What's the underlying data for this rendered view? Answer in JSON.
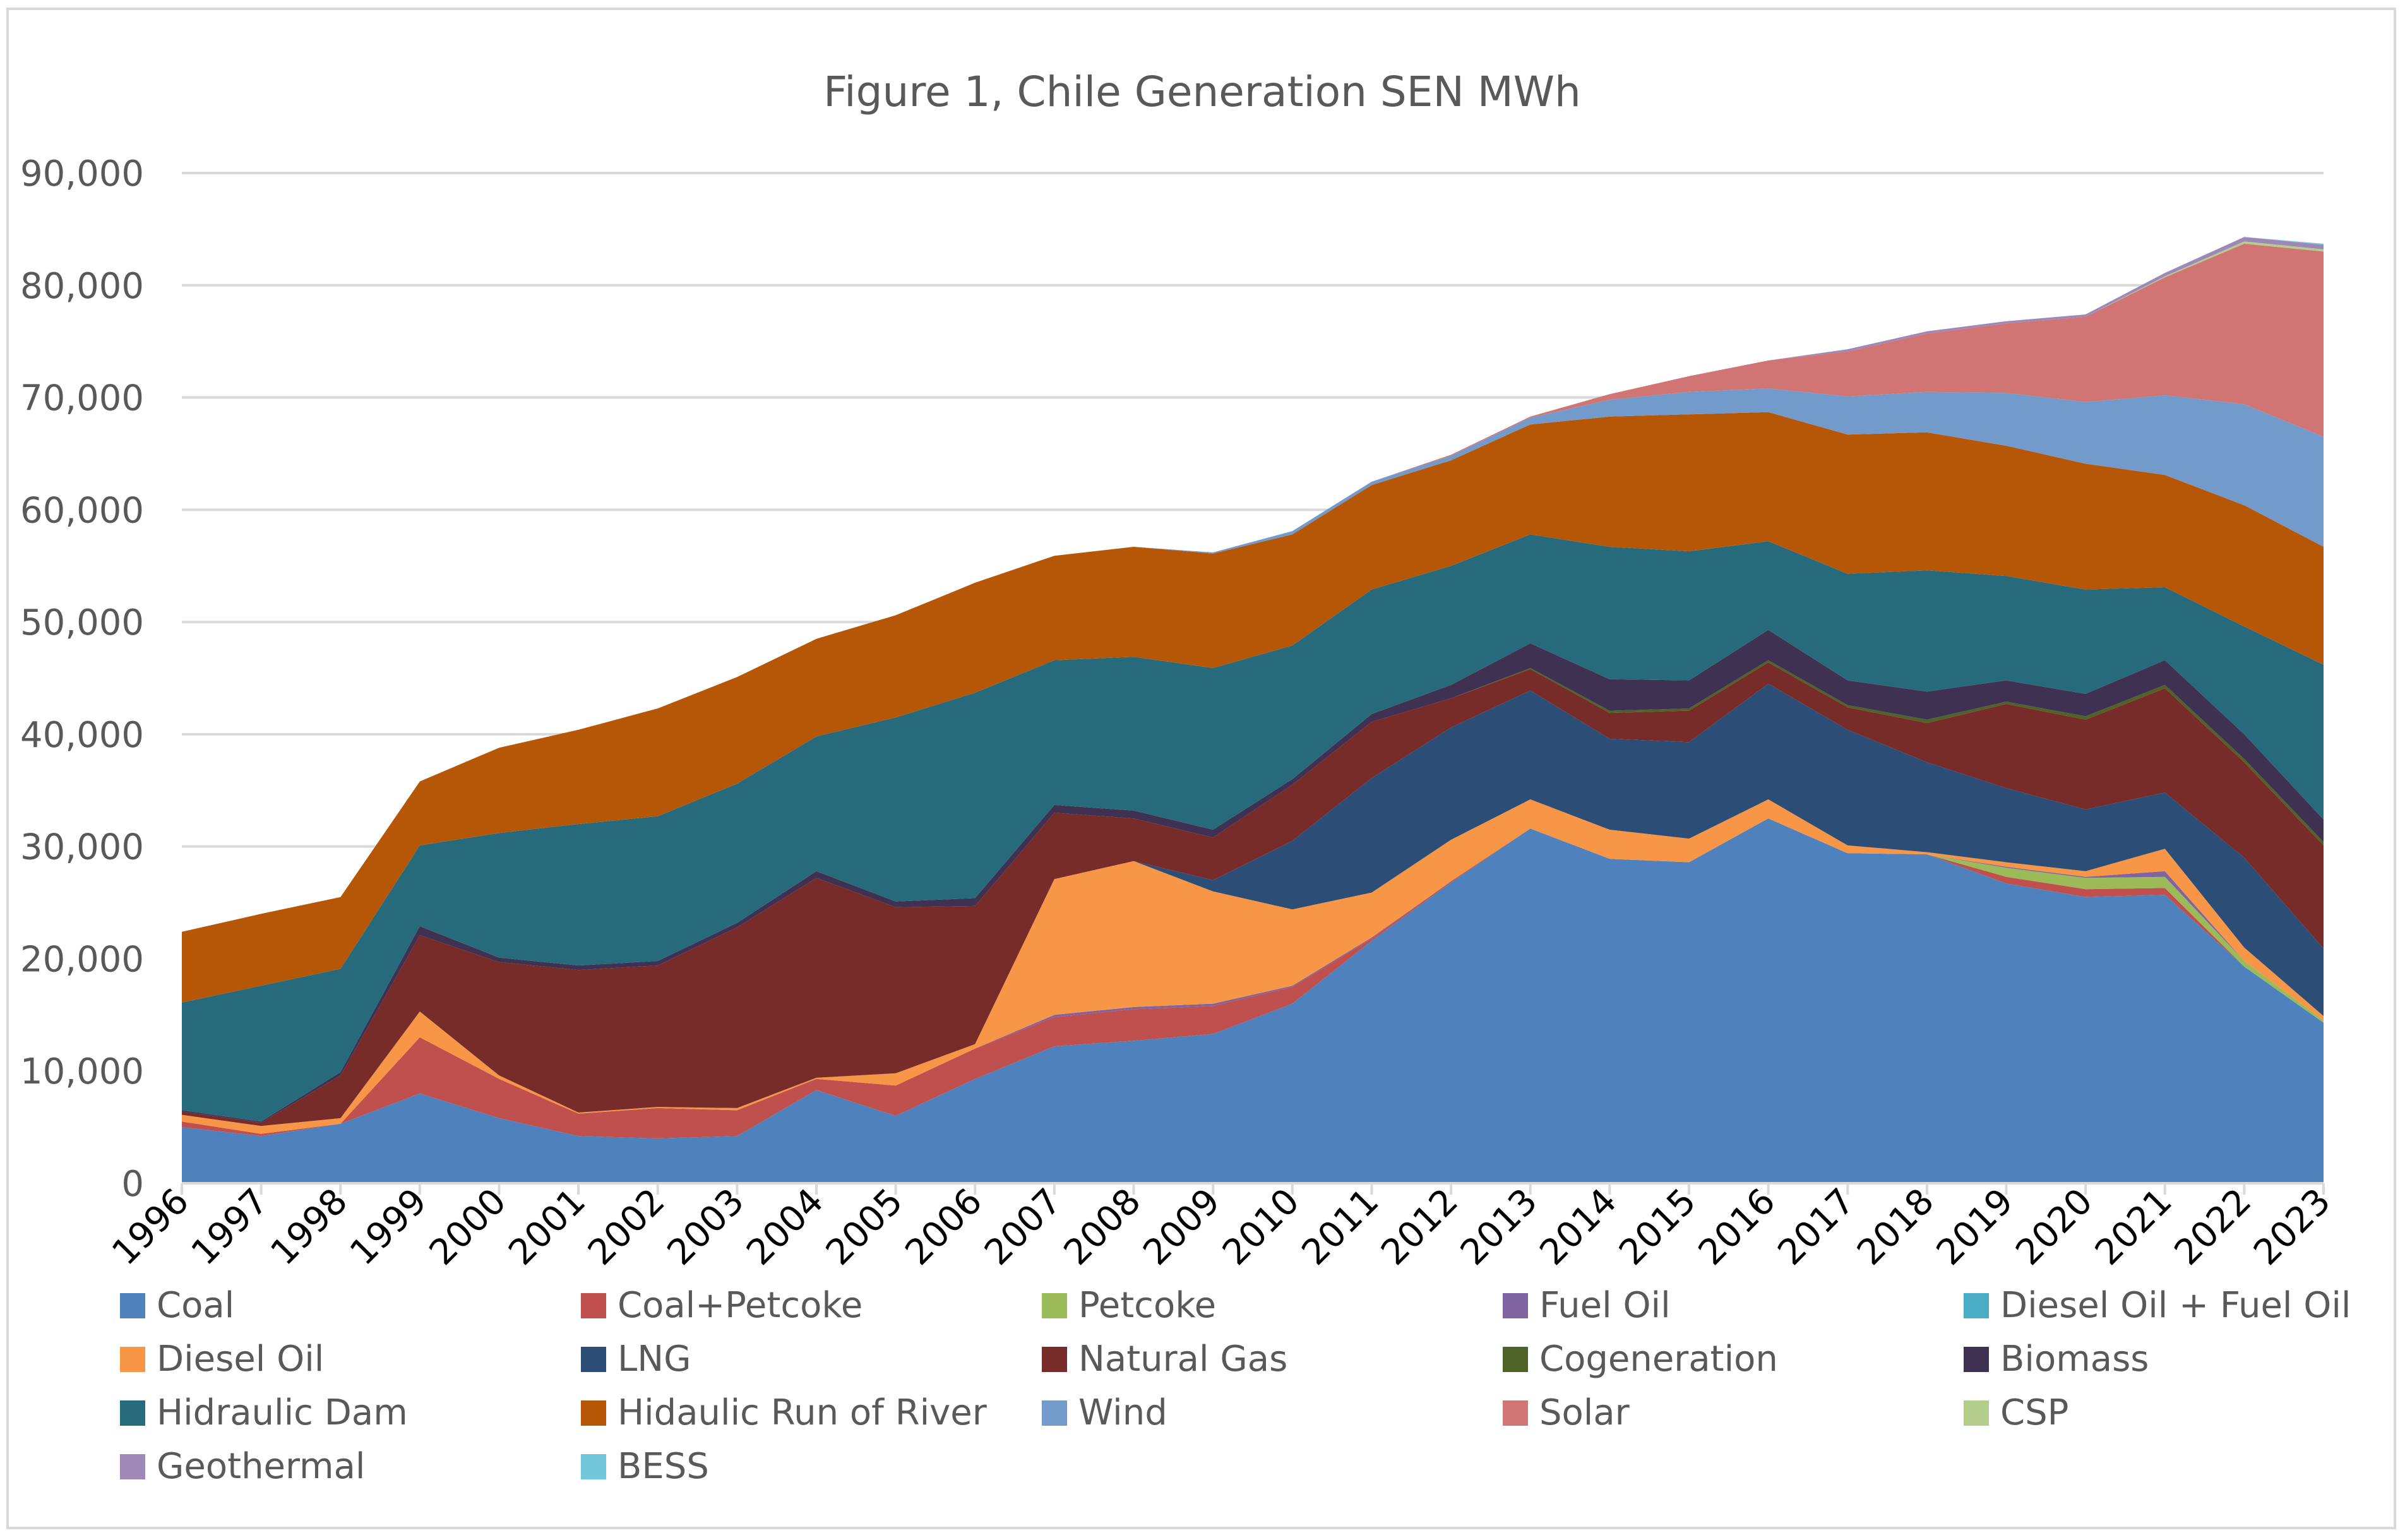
{
  "chart_data": {
    "type": "area",
    "stacked": true,
    "title": "Figure 1, Chile Generation SEN MWh",
    "xlabel": "",
    "ylabel": "",
    "ylim": [
      0,
      90000
    ],
    "yticks": [
      0,
      10000,
      20000,
      30000,
      40000,
      50000,
      60000,
      70000,
      80000,
      90000
    ],
    "ytick_labels": [
      "0",
      "10,000",
      "20,000",
      "30,000",
      "40,000",
      "50,000",
      "60,000",
      "70,000",
      "80,000",
      "90,000"
    ],
    "grid": true,
    "legend_position": "bottom",
    "categories": [
      "1996",
      "1997",
      "1998",
      "1999",
      "2000",
      "2001",
      "2002",
      "2003",
      "2004",
      "2005",
      "2006",
      "2007",
      "2008",
      "2009",
      "2010",
      "2011",
      "2012",
      "2013",
      "2014",
      "2015",
      "2016",
      "2017",
      "2018",
      "2019",
      "2020",
      "2021",
      "2022",
      "2023"
    ],
    "series": [
      {
        "name": "Coal",
        "color": "#4f81bd",
        "values": [
          5000,
          4200,
          5300,
          8000,
          5800,
          4200,
          4000,
          4200,
          8300,
          6000,
          9300,
          12200,
          12700,
          13300,
          16000,
          21600,
          26800,
          31600,
          28900,
          28600,
          32500,
          29400,
          29300,
          26700,
          25500,
          25700,
          19300,
          14300
        ]
      },
      {
        "name": "Coal+Petcoke",
        "color": "#c0504d",
        "values": [
          500,
          200,
          0,
          5000,
          3500,
          2000,
          2700,
          2300,
          1000,
          2700,
          2700,
          2600,
          2800,
          2500,
          1500,
          200,
          100,
          0,
          0,
          0,
          0,
          0,
          0,
          600,
          700,
          600,
          0,
          0
        ]
      },
      {
        "name": "Petcoke",
        "color": "#9bbb59",
        "values": [
          0,
          0,
          0,
          0,
          0,
          0,
          0,
          0,
          0,
          0,
          0,
          0,
          0,
          0,
          0,
          0,
          0,
          0,
          0,
          0,
          0,
          0,
          0,
          800,
          1000,
          1000,
          500,
          200
        ]
      },
      {
        "name": "Fuel Oil",
        "color": "#8064a2",
        "values": [
          0,
          0,
          0,
          0,
          0,
          0,
          0,
          0,
          0,
          0,
          0,
          200,
          200,
          200,
          100,
          100,
          0,
          0,
          0,
          0,
          0,
          0,
          0,
          100,
          100,
          500,
          0,
          0
        ]
      },
      {
        "name": "Diesel Oil + Fuel Oil",
        "color": "#4bacc6",
        "values": [
          0,
          0,
          0,
          0,
          0,
          0,
          0,
          0,
          0,
          0,
          0,
          0,
          0,
          0,
          0,
          0,
          0,
          0,
          0,
          0,
          0,
          0,
          0,
          0,
          0,
          0,
          0,
          0
        ]
      },
      {
        "name": "Diesel Oil",
        "color": "#f79646",
        "values": [
          600,
          700,
          500,
          2300,
          300,
          100,
          100,
          200,
          100,
          1100,
          400,
          12100,
          13000,
          10000,
          6800,
          4000,
          3700,
          2600,
          2600,
          2100,
          1700,
          700,
          200,
          400,
          500,
          2000,
          1200,
          400
        ]
      },
      {
        "name": "LNG",
        "color": "#2c4d75",
        "values": [
          0,
          0,
          0,
          0,
          0,
          0,
          0,
          0,
          0,
          0,
          0,
          0,
          0,
          1000,
          6100,
          10200,
          10000,
          9700,
          8100,
          8600,
          10300,
          10300,
          8000,
          6600,
          5500,
          5000,
          8000,
          6000
        ]
      },
      {
        "name": "Natural Gas",
        "color": "#772c2a",
        "values": [
          300,
          300,
          3800,
          6800,
          10100,
          12700,
          12600,
          16100,
          17800,
          14800,
          12300,
          5900,
          3800,
          3800,
          5000,
          5000,
          2600,
          1900,
          2300,
          2800,
          1900,
          2000,
          3500,
          7500,
          8000,
          9300,
          8500,
          9200
        ]
      },
      {
        "name": "Cogeneration",
        "color": "#4f6228",
        "values": [
          0,
          0,
          0,
          0,
          0,
          0,
          0,
          0,
          0,
          0,
          0,
          0,
          0,
          0,
          0,
          0,
          0,
          100,
          200,
          200,
          200,
          200,
          300,
          200,
          300,
          300,
          300,
          300
        ]
      },
      {
        "name": "Biomass",
        "color": "#3f3151",
        "values": [
          100,
          100,
          300,
          800,
          400,
          400,
          400,
          400,
          600,
          500,
          700,
          700,
          700,
          700,
          500,
          700,
          1200,
          2200,
          2800,
          2500,
          2700,
          2200,
          2500,
          1900,
          2000,
          2200,
          2200,
          2000
        ]
      },
      {
        "name": "Hidraulic Dam",
        "color": "#276a7c",
        "values": [
          9600,
          12100,
          9200,
          7200,
          11100,
          12600,
          12900,
          12400,
          12000,
          16400,
          18300,
          12900,
          13700,
          14400,
          11900,
          11100,
          10600,
          9700,
          11800,
          11500,
          7900,
          9500,
          10800,
          9300,
          9300,
          6500,
          9600,
          13800
        ]
      },
      {
        "name": "Hidaulic Run of River",
        "color": "#b65708",
        "values": [
          6300,
          6400,
          6400,
          5700,
          7600,
          8400,
          9600,
          9500,
          8700,
          9100,
          9800,
          9300,
          9800,
          10200,
          9900,
          9300,
          9400,
          9800,
          11600,
          12200,
          11500,
          12400,
          12300,
          11600,
          11200,
          10000,
          10800,
          10500
        ]
      },
      {
        "name": "Wind",
        "color": "#729aca",
        "values": [
          0,
          0,
          0,
          0,
          0,
          0,
          0,
          0,
          0,
          0,
          0,
          0,
          0,
          100,
          300,
          300,
          400,
          600,
          1500,
          2000,
          2100,
          3400,
          3600,
          4700,
          5500,
          7100,
          9000,
          9800
        ]
      },
      {
        "name": "Solar",
        "color": "#d07573",
        "values": [
          0,
          0,
          0,
          0,
          0,
          0,
          0,
          0,
          0,
          0,
          0,
          0,
          0,
          0,
          0,
          0,
          100,
          100,
          500,
          1400,
          2500,
          4000,
          5200,
          6200,
          7600,
          10500,
          14300,
          16500
        ]
      },
      {
        "name": "CSP",
        "color": "#b3cd8a",
        "values": [
          0,
          0,
          0,
          0,
          0,
          0,
          0,
          0,
          0,
          0,
          0,
          0,
          0,
          0,
          0,
          0,
          0,
          0,
          0,
          0,
          0,
          0,
          0,
          0,
          0,
          100,
          200,
          200
        ]
      },
      {
        "name": "Geothermal",
        "color": "#9d88b8",
        "values": [
          0,
          0,
          0,
          0,
          0,
          0,
          0,
          0,
          0,
          0,
          0,
          0,
          0,
          0,
          0,
          0,
          0,
          0,
          0,
          0,
          0,
          200,
          200,
          200,
          200,
          300,
          400,
          400
        ]
      },
      {
        "name": "BESS",
        "color": "#71c6d9",
        "values": [
          0,
          0,
          0,
          0,
          0,
          0,
          0,
          0,
          0,
          0,
          0,
          0,
          0,
          0,
          0,
          0,
          0,
          0,
          0,
          0,
          0,
          0,
          0,
          0,
          0,
          0,
          0,
          100
        ]
      }
    ]
  }
}
